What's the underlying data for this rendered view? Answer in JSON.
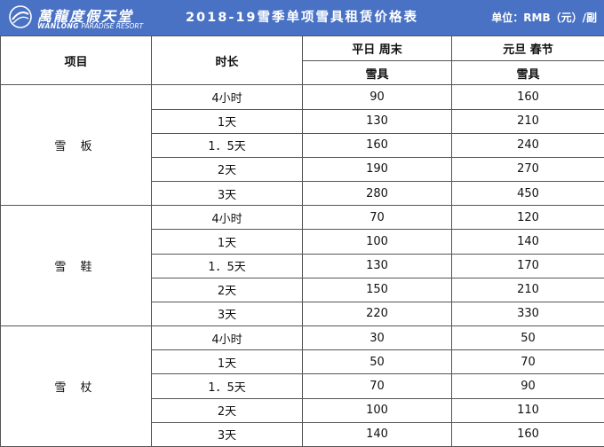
{
  "header": {
    "logo_cn": "萬龍度假天堂",
    "logo_en_bold": "WANLONG",
    "logo_en_rest": "PARADISE RESORT",
    "title": "2018-19雪季单项雪具租赁价格表",
    "unit": "单位：RMB（元）/副"
  },
  "table": {
    "col_item": "项目",
    "col_duration": "时长",
    "col_weekday": "平日 周末",
    "col_holiday": "元旦 春节",
    "sub_weekday": "雪具",
    "sub_holiday": "雪具",
    "categories": [
      {
        "name": "雪 板",
        "rows": [
          {
            "duration": "4小时",
            "weekday": "90",
            "holiday": "160"
          },
          {
            "duration": "1天",
            "weekday": "130",
            "holiday": "210"
          },
          {
            "duration": "1．5天",
            "weekday": "160",
            "holiday": "240"
          },
          {
            "duration": "2天",
            "weekday": "190",
            "holiday": "270"
          },
          {
            "duration": "3天",
            "weekday": "280",
            "holiday": "450"
          }
        ]
      },
      {
        "name": "雪 鞋",
        "rows": [
          {
            "duration": "4小时",
            "weekday": "70",
            "holiday": "120"
          },
          {
            "duration": "1天",
            "weekday": "100",
            "holiday": "140"
          },
          {
            "duration": "1．5天",
            "weekday": "130",
            "holiday": "170"
          },
          {
            "duration": "2天",
            "weekday": "150",
            "holiday": "210"
          },
          {
            "duration": "3天",
            "weekday": "220",
            "holiday": "330"
          }
        ]
      },
      {
        "name": "雪 杖",
        "rows": [
          {
            "duration": "4小时",
            "weekday": "30",
            "holiday": "50"
          },
          {
            "duration": "1天",
            "weekday": "50",
            "holiday": "70"
          },
          {
            "duration": "1．5天",
            "weekday": "70",
            "holiday": "90"
          },
          {
            "duration": "2天",
            "weekday": "100",
            "holiday": "110"
          },
          {
            "duration": "3天",
            "weekday": "140",
            "holiday": "160"
          }
        ]
      }
    ]
  },
  "colors": {
    "header_bg": "#4a72c4",
    "border": "#555555"
  }
}
